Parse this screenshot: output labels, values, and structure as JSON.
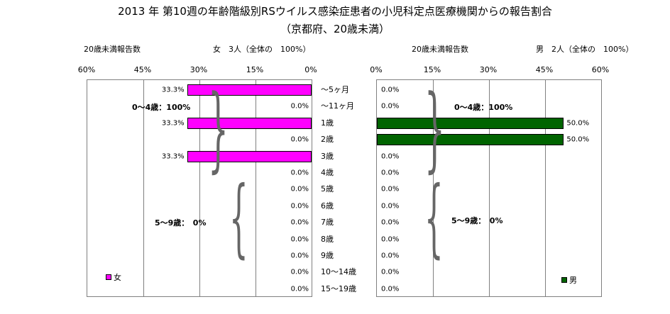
{
  "title_line1": "2013 年 第10週の年齢階級別RSウイルス感染症患者の小児科定点医療機関からの報告割合",
  "title_line2": "（京都府、20歳未満）",
  "categories": [
    "～5ヶ月",
    "～11ヶ月",
    "1歳",
    "2歳",
    "3歳",
    "4歳",
    "5歳",
    "6歳",
    "7歳",
    "8歳",
    "9歳",
    "10～14歳",
    "15～19歳"
  ],
  "left": {
    "subtitle_left": "20歳未満報告数",
    "subtitle_right": "女　3人（全体の　100%）",
    "ticks": [
      "60%",
      "45%",
      "30%",
      "15%",
      "0%"
    ],
    "legend": "女",
    "group_labels": [
      "0～4歳：100%",
      "5～9歳：　0%"
    ],
    "color": "#ff00ff",
    "labels": [
      "33.3%",
      "0.0%",
      "33.3%",
      "0.0%",
      "33.3%",
      "0.0%",
      "0.0%",
      "0.0%",
      "0.0%",
      "0.0%",
      "0.0%",
      "0.0%",
      "0.0%"
    ]
  },
  "right": {
    "subtitle_left": "20歳未満報告数",
    "subtitle_right": "男　2人（全体の　100%）",
    "ticks": [
      "0%",
      "15%",
      "30%",
      "45%",
      "60%"
    ],
    "legend": "男",
    "group_labels": [
      "0～4歳：100%",
      "5～9歳：　0%"
    ],
    "color": "#006400",
    "labels": [
      "0.0%",
      "0.0%",
      "50.0%",
      "50.0%",
      "0.0%",
      "0.0%",
      "0.0%",
      "0.0%",
      "0.0%",
      "0.0%",
      "0.0%",
      "0.0%",
      "0.0%"
    ]
  },
  "chart_data": [
    {
      "type": "bar",
      "orientation": "horizontal",
      "categories": [
        "～5ヶ月",
        "～11ヶ月",
        "1歳",
        "2歳",
        "3歳",
        "4歳",
        "5歳",
        "6歳",
        "7歳",
        "8歳",
        "9歳",
        "10～14歳",
        "15～19歳"
      ],
      "series": [
        {
          "name": "女",
          "values": [
            33.3,
            0,
            33.3,
            0,
            33.3,
            0,
            0,
            0,
            0,
            0,
            0,
            0,
            0
          ]
        }
      ],
      "xlim": [
        0,
        60
      ],
      "x_direction": "reversed",
      "grid": true,
      "legend_position": "bottom-left"
    },
    {
      "type": "bar",
      "orientation": "horizontal",
      "categories": [
        "～5ヶ月",
        "～11ヶ月",
        "1歳",
        "2歳",
        "3歳",
        "4歳",
        "5歳",
        "6歳",
        "7歳",
        "8歳",
        "9歳",
        "10～14歳",
        "15～19歳"
      ],
      "series": [
        {
          "name": "男",
          "values": [
            0,
            0,
            50,
            50,
            0,
            0,
            0,
            0,
            0,
            0,
            0,
            0,
            0
          ]
        }
      ],
      "xlim": [
        0,
        60
      ],
      "grid": true,
      "legend_position": "bottom-right"
    }
  ]
}
